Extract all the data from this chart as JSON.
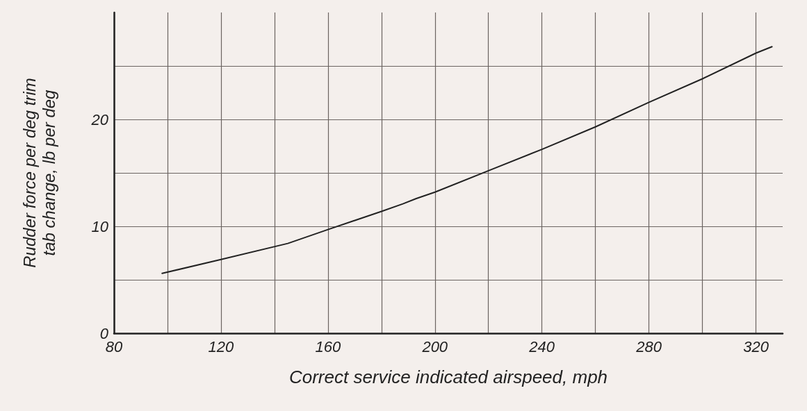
{
  "chart_data": {
    "type": "line",
    "xlabel": "Correct service indicated airspeed, mph",
    "ylabel": "Rudder force per deg trim\ntab change, lb per deg",
    "x": [
      98,
      120,
      145,
      160,
      180,
      188,
      193,
      200,
      220,
      240,
      260,
      280,
      300,
      320,
      326
    ],
    "series": [
      {
        "color": "#222222",
        "values": [
          5.6,
          6.9,
          8.4,
          9.7,
          11.4,
          12.1,
          12.6,
          13.2,
          15.2,
          17.2,
          19.3,
          21.6,
          23.8,
          26.2,
          26.8
        ]
      }
    ],
    "xlim": [
      80,
      330
    ],
    "xticks": [
      80,
      {
        "value": 100,
        "label": null
      },
      120,
      {
        "value": 140,
        "label": null
      },
      160,
      {
        "value": 180,
        "label": null
      },
      200,
      {
        "value": 220,
        "label": null
      },
      240,
      {
        "value": 260,
        "label": null
      },
      280,
      {
        "value": 300,
        "label": null
      },
      320
    ],
    "ylim": [
      0,
      30
    ],
    "yticks": [
      0,
      {
        "value": 5,
        "label": null
      },
      10,
      {
        "value": 15,
        "label": null
      },
      20,
      {
        "value": 25,
        "label": null
      }
    ],
    "grid": true,
    "marker": "none",
    "line_style": "solid"
  }
}
